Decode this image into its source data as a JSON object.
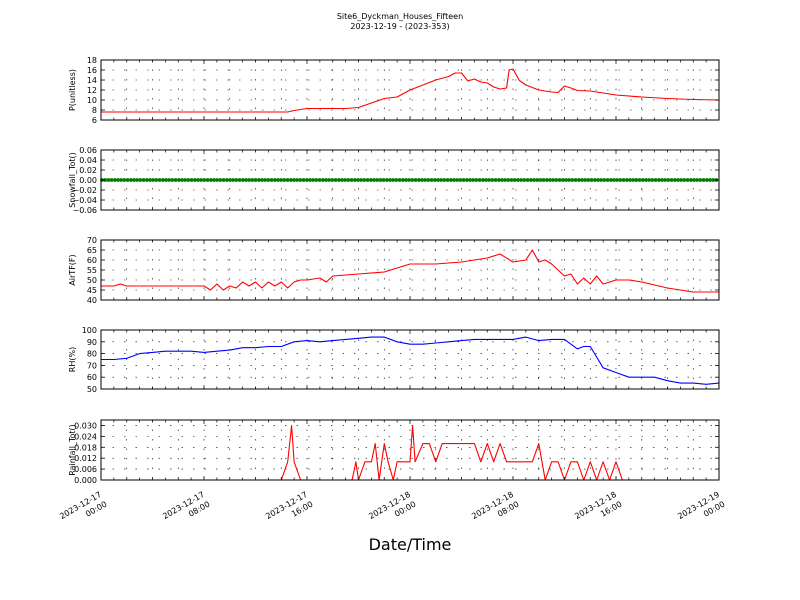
{
  "figure": {
    "title": "Site6_Dyckman_Houses_Fifteen",
    "subtitle": "2023-12-19 - (2023-353)",
    "xlabel": "Date/Time",
    "x_ticks": [
      "2023-12-17\n00:00",
      "2023-12-17\n08:00",
      "2023-12-17\n16:00",
      "2023-12-18\n00:00",
      "2023-12-18\n08:00",
      "2023-12-18\n16:00",
      "2023-12-19\n00:00"
    ]
  },
  "chart_data": [
    {
      "type": "line",
      "ylabel": "P(unitless)",
      "ylim": [
        6,
        18
      ],
      "yticks": [
        "6",
        "8",
        "10",
        "12",
        "14",
        "16",
        "18"
      ],
      "color": "#ff0000",
      "grid": true,
      "x_hours": [
        0,
        6,
        12,
        14.5,
        15,
        16,
        19,
        20,
        21,
        22,
        23,
        24,
        25,
        26,
        27,
        27.5,
        28,
        28.5,
        29,
        29.5,
        30,
        30.5,
        31,
        31.5,
        31.7,
        32,
        32.5,
        33,
        34,
        35,
        35.5,
        36,
        36.5,
        37,
        38,
        39,
        40,
        42,
        44,
        46,
        48
      ],
      "values": [
        7.6,
        7.6,
        7.6,
        7.6,
        7.9,
        8.3,
        8.3,
        8.5,
        9.4,
        10.3,
        10.6,
        12.0,
        13.0,
        14.0,
        14.7,
        15.4,
        15.4,
        13.8,
        14.2,
        13.6,
        13.4,
        12.6,
        12.2,
        12.4,
        16.0,
        16.2,
        13.9,
        13.0,
        12.0,
        11.6,
        11.5,
        12.8,
        12.4,
        11.9,
        11.8,
        11.4,
        11.0,
        10.6,
        10.3,
        10.1,
        10.0
      ]
    },
    {
      "type": "scatter",
      "ylabel": "Snowfall_Tot()",
      "ylim": [
        -0.06,
        0.06
      ],
      "yticks": [
        "−0.06",
        "−0.04",
        "−0.02",
        "0.00",
        "0.02",
        "0.04",
        "0.06"
      ],
      "color": "#008000",
      "grid": true,
      "x_hours": [
        0,
        48
      ],
      "values": [
        0.0,
        0.0
      ]
    },
    {
      "type": "line",
      "ylabel": "AirTF(F)",
      "ylim": [
        40,
        70
      ],
      "yticks": [
        "40",
        "45",
        "50",
        "55",
        "60",
        "65",
        "70"
      ],
      "color": "#ff0000",
      "grid": true,
      "x_hours": [
        0,
        1,
        1.5,
        2,
        4,
        7,
        8,
        8.5,
        9,
        9.5,
        10,
        10.5,
        11,
        11.5,
        12,
        12.5,
        13,
        13.5,
        14,
        14.5,
        15,
        15.5,
        16,
        17,
        17.5,
        18,
        20,
        22,
        24,
        26,
        28,
        30,
        31,
        32,
        33,
        33.5,
        34,
        34.5,
        35,
        36,
        36.5,
        37,
        37.5,
        38,
        38.5,
        39,
        40,
        41,
        42,
        44,
        46,
        48
      ],
      "values": [
        47,
        47,
        48,
        47,
        47,
        47,
        47,
        45,
        48,
        45,
        47,
        46,
        49,
        47,
        49,
        46,
        49,
        47,
        49,
        46,
        49,
        50,
        50,
        51,
        49,
        52,
        53,
        54,
        58,
        58,
        59,
        61,
        63,
        59,
        60,
        65,
        59,
        60,
        58,
        52,
        53,
        48,
        51,
        48,
        52,
        48,
        50,
        50,
        49,
        46,
        44,
        44
      ]
    },
    {
      "type": "line",
      "ylabel": "RH(%)",
      "ylim": [
        50,
        100
      ],
      "yticks": [
        "50",
        "60",
        "70",
        "80",
        "90",
        "100"
      ],
      "color": "#0000ff",
      "grid": true,
      "x_hours": [
        0,
        1,
        2,
        3,
        4,
        5,
        6,
        7,
        8,
        9,
        10,
        11,
        12,
        13,
        14,
        15,
        16,
        17,
        18,
        19,
        20,
        21,
        22,
        23,
        24,
        25,
        26,
        27,
        28,
        29,
        30,
        31,
        32,
        33,
        34,
        35,
        36,
        37,
        37.5,
        38,
        39,
        40,
        41,
        42,
        43,
        44,
        45,
        46,
        47,
        48
      ],
      "values": [
        75,
        75,
        76,
        80,
        81,
        82,
        82,
        82,
        81,
        82,
        83,
        85,
        85,
        86,
        86,
        90,
        91,
        90,
        91,
        92,
        93,
        94,
        94,
        90,
        88,
        88,
        89,
        90,
        91,
        92,
        92,
        92,
        92,
        94,
        91,
        92,
        92,
        84,
        86,
        86,
        68,
        64,
        60,
        60,
        60,
        57,
        55,
        55,
        54,
        55
      ]
    },
    {
      "type": "line",
      "ylabel": "Rainfall_Tot()",
      "ylim": [
        0,
        0.033
      ],
      "yticks": [
        "0.000",
        "0.006",
        "0.012",
        "0.018",
        "0.024",
        "0.030"
      ],
      "color": "#ff0000",
      "grid": true,
      "x_hours": [
        0,
        14,
        14.5,
        14.8,
        15.0,
        15.5,
        18,
        19.5,
        19.8,
        20,
        20.5,
        21,
        21.3,
        21.6,
        22,
        22.3,
        22.7,
        23,
        23.5,
        24,
        24.2,
        24.4,
        25,
        25.5,
        26,
        26.5,
        27,
        27.5,
        28,
        28.5,
        29,
        29.5,
        30,
        30.5,
        31,
        31.5,
        32,
        32.5,
        33,
        33.5,
        34,
        34.5,
        35,
        35.5,
        36,
        36.5,
        37,
        37.5,
        38,
        38.5,
        39,
        39.5,
        40,
        40.5,
        41,
        48
      ],
      "values": [
        0.0,
        0.0,
        0.01,
        0.03,
        0.01,
        0.0,
        0.0,
        0.0,
        0.01,
        0.0,
        0.01,
        0.01,
        0.02,
        0.0,
        0.02,
        0.01,
        0.0,
        0.01,
        0.01,
        0.01,
        0.03,
        0.01,
        0.02,
        0.02,
        0.01,
        0.02,
        0.02,
        0.02,
        0.02,
        0.02,
        0.02,
        0.01,
        0.02,
        0.01,
        0.02,
        0.01,
        0.01,
        0.01,
        0.01,
        0.01,
        0.02,
        0.0,
        0.01,
        0.01,
        0.0,
        0.01,
        0.01,
        0.0,
        0.01,
        0.0,
        0.01,
        0.0,
        0.01,
        0.0,
        0.0,
        0.0
      ]
    }
  ]
}
